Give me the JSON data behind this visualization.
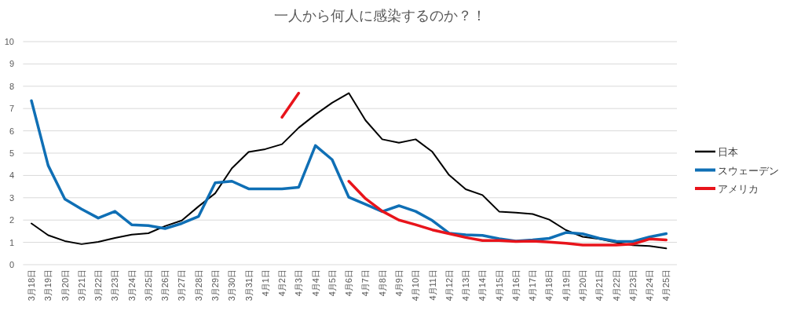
{
  "chart_data": {
    "type": "line",
    "title": "一人から何人に感染するのか？！",
    "categories": [
      "3月18日",
      "3月19日",
      "3月20日",
      "3月21日",
      "3月22日",
      "3月23日",
      "3月24日",
      "3月25日",
      "3月26日",
      "3月27日",
      "3月28日",
      "3月29日",
      "3月30日",
      "3月31日",
      "4月1日",
      "4月2日",
      "4月3日",
      "4月4日",
      "4月5日",
      "4月6日",
      "4月7日",
      "4月8日",
      "4月9日",
      "4月10日",
      "4月11日",
      "4月12日",
      "4月13日",
      "4月14日",
      "4月15日",
      "4月16日",
      "4月17日",
      "4月18日",
      "4月19日",
      "4月20日",
      "4月21日",
      "4月22日",
      "4月23日",
      "4月24日",
      "4月25日"
    ],
    "series": [
      {
        "name": "日本",
        "color": "#000000",
        "values": [
          1.85,
          1.32,
          1.06,
          0.92,
          1.02,
          1.2,
          1.35,
          1.41,
          1.73,
          1.98,
          2.61,
          3.2,
          4.32,
          5.05,
          5.18,
          5.4,
          6.14,
          6.73,
          7.26,
          7.69,
          6.47,
          5.62,
          5.47,
          5.62,
          5.06,
          4.02,
          3.38,
          3.12,
          2.38,
          2.33,
          2.27,
          2.02,
          1.55,
          1.25,
          1.15,
          0.99,
          0.87,
          0.84,
          0.73
        ]
      },
      {
        "name": "スウェーデン",
        "color": "#0f6fb5",
        "values": [
          7.35,
          4.45,
          2.94,
          2.49,
          2.09,
          2.39,
          1.79,
          1.75,
          1.62,
          1.85,
          2.16,
          3.67,
          3.74,
          3.4,
          3.4,
          3.4,
          3.47,
          5.34,
          4.71,
          3.02,
          2.71,
          2.38,
          2.64,
          2.39,
          1.98,
          1.41,
          1.34,
          1.31,
          1.16,
          1.06,
          1.11,
          1.18,
          1.44,
          1.38,
          1.18,
          1.05,
          1.04,
          1.24,
          1.39
        ]
      },
      {
        "name": "アメリカ",
        "color": "#e8141b",
        "values": [
          null,
          null,
          null,
          null,
          null,
          null,
          null,
          null,
          null,
          null,
          null,
          null,
          null,
          null,
          null,
          6.61,
          7.69,
          null,
          null,
          3.74,
          2.96,
          2.4,
          2.0,
          1.79,
          1.56,
          1.39,
          1.22,
          1.08,
          1.08,
          1.04,
          1.06,
          1.01,
          0.96,
          0.88,
          0.88,
          0.88,
          0.92,
          1.15,
          1.11
        ]
      }
    ],
    "ylim": [
      0,
      10
    ],
    "yticks": [
      0,
      1,
      2,
      3,
      4,
      5,
      6,
      7,
      8,
      9,
      10
    ],
    "grid": "y",
    "legend": "right"
  }
}
